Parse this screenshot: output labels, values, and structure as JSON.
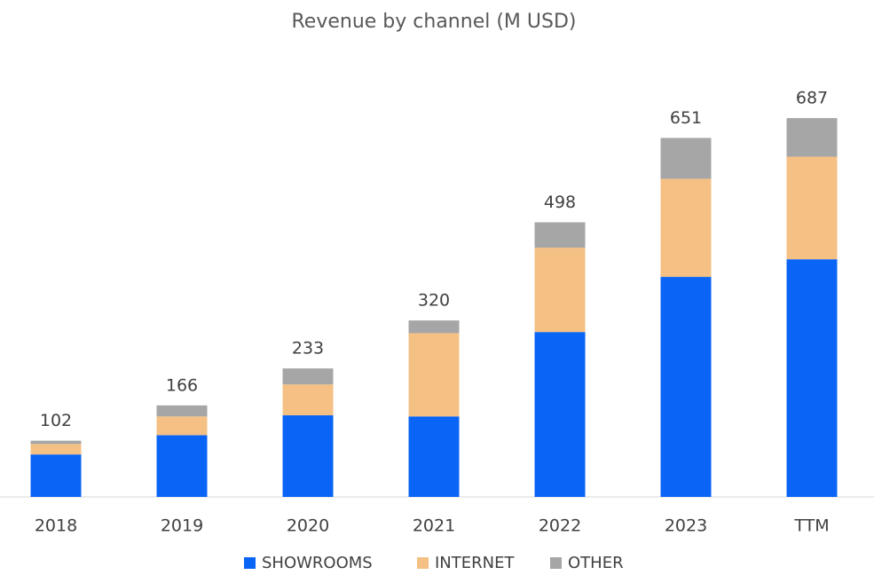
{
  "chart_data": {
    "type": "stacked_bar",
    "title": "Revenue by channel (M USD)",
    "categories": [
      "2018",
      "2019",
      "2020",
      "2021",
      "2022",
      "2023",
      "TTM"
    ],
    "series": [
      {
        "name": "SHOWROOMS",
        "color": "#0a64f5",
        "values": [
          77,
          112,
          148,
          146,
          299,
          399,
          431
        ]
      },
      {
        "name": "INTERNET",
        "color": "#f5c084",
        "values": [
          19,
          34,
          56,
          151,
          153,
          178,
          186
        ]
      },
      {
        "name": "OTHER",
        "color": "#a6a6a6",
        "values": [
          6,
          20,
          29,
          23,
          46,
          74,
          70
        ]
      }
    ],
    "totals": [
      102,
      166,
      233,
      320,
      498,
      651,
      687
    ],
    "ylim": [
      0,
      700
    ]
  }
}
